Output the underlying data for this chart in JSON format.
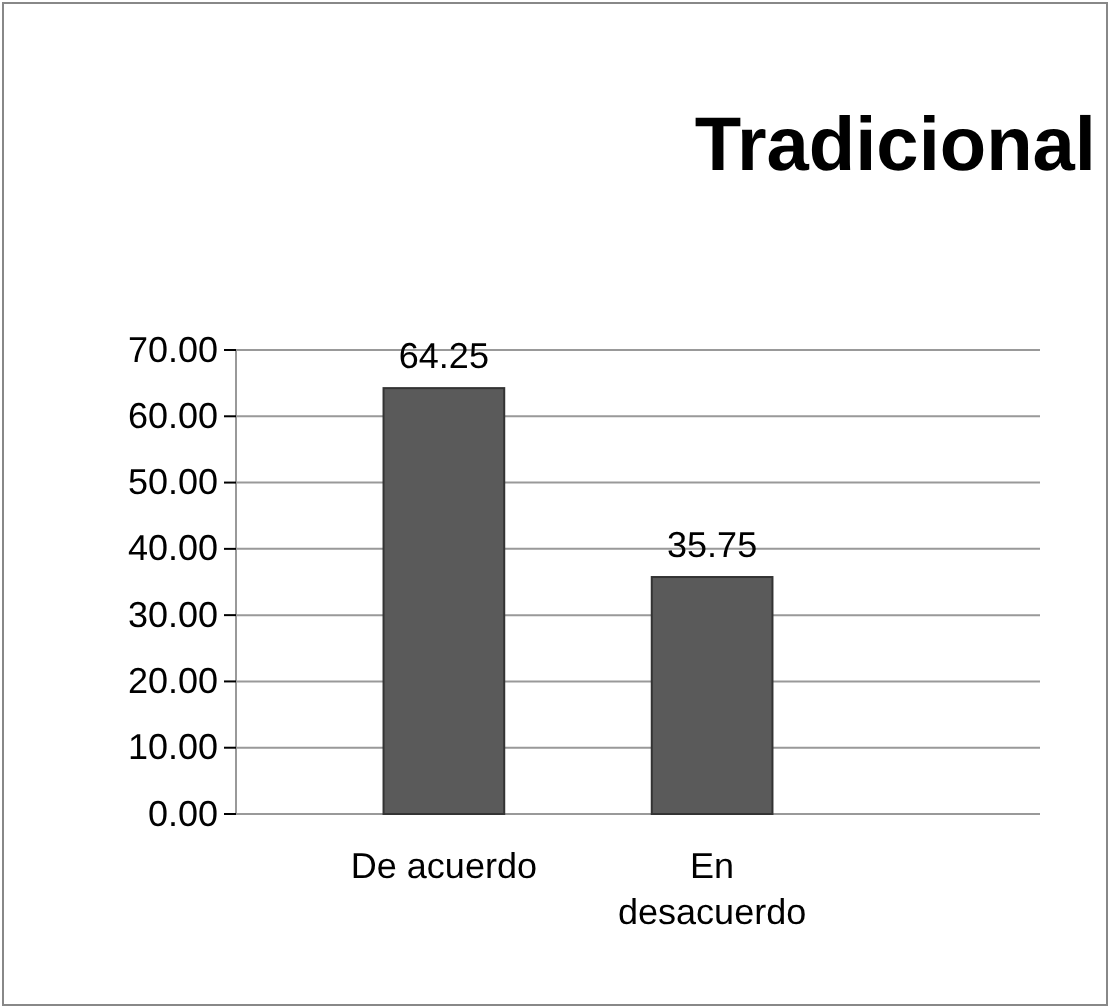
{
  "chart_data": {
    "type": "bar",
    "title": "Tradicional",
    "categories": [
      "De acuerdo",
      "En desacuerdo"
    ],
    "values": [
      64.25,
      35.75
    ],
    "color": "#5a5a5a",
    "ylim": [
      0,
      70
    ],
    "yticks": [
      {
        "value": 0,
        "label": "0.00"
      },
      {
        "value": 10,
        "label": "10.00"
      },
      {
        "value": 20,
        "label": "20.00"
      },
      {
        "value": 30,
        "label": "30.00"
      },
      {
        "value": 40,
        "label": "40.00"
      },
      {
        "value": 50,
        "label": "50.00"
      },
      {
        "value": 60,
        "label": "60.00"
      },
      {
        "value": 70,
        "label": "70.00"
      }
    ],
    "grid": "y",
    "data_labels": true
  }
}
